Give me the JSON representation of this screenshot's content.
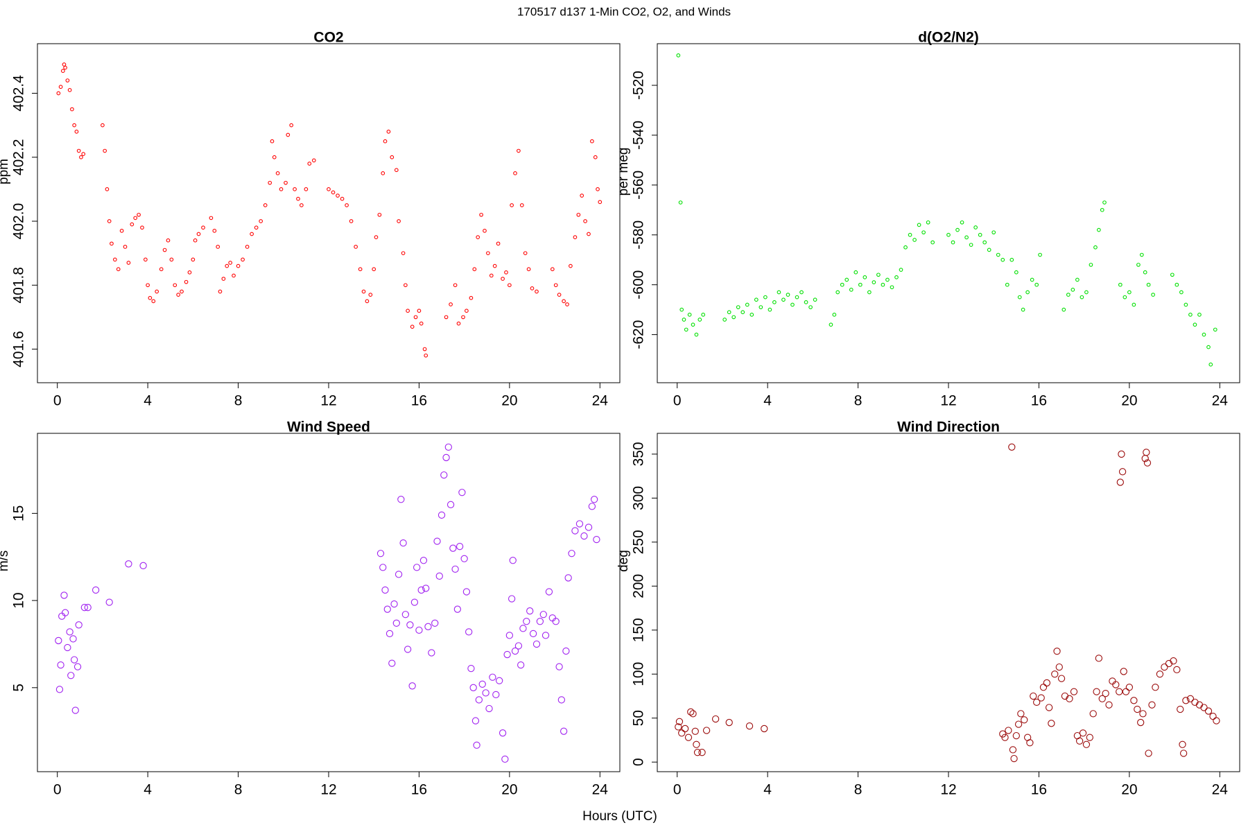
{
  "title": "170517   d137   1-Min CO2, O2, and Winds",
  "xlabel": "Hours (UTC)",
  "chart_data": [
    {
      "type": "scatter",
      "title": "CO2",
      "ylabel": "ppm",
      "color": "#ff0000",
      "xlim": [
        -0.88,
        24.88
      ],
      "xticks": [
        0,
        4,
        8,
        12,
        16,
        20,
        24
      ],
      "ylim": [
        401.495,
        402.555
      ],
      "yticks": [
        401.6,
        401.8,
        {
          "value": 402,
          "label": "402.0"
        },
        402.2,
        402.4
      ],
      "x": [
        0.05,
        0.15,
        0.25,
        0.3,
        0.35,
        0.45,
        0.55,
        0.65,
        0.75,
        0.85,
        0.95,
        1.05,
        1.15,
        2.0,
        2.1,
        2.2,
        2.3,
        2.4,
        2.55,
        2.7,
        2.85,
        3.0,
        3.15,
        3.3,
        3.45,
        3.6,
        3.75,
        3.9,
        4.0,
        4.1,
        4.25,
        4.4,
        4.6,
        4.75,
        4.9,
        5.05,
        5.2,
        5.35,
        5.5,
        5.7,
        5.85,
        6.0,
        6.1,
        6.25,
        6.45,
        6.8,
        6.95,
        7.1,
        7.2,
        7.35,
        7.5,
        7.65,
        7.8,
        8.0,
        8.2,
        8.4,
        8.6,
        8.8,
        9.0,
        9.2,
        9.4,
        9.5,
        9.6,
        9.75,
        9.9,
        10.1,
        10.2,
        10.35,
        10.5,
        10.65,
        10.8,
        11.0,
        11.15,
        11.35,
        12.0,
        12.2,
        12.4,
        12.6,
        12.8,
        13.0,
        13.2,
        13.4,
        13.55,
        13.7,
        13.85,
        14.0,
        14.1,
        14.25,
        14.4,
        14.5,
        14.65,
        14.8,
        15.0,
        15.1,
        15.3,
        15.4,
        15.5,
        15.7,
        15.85,
        16.0,
        16.1,
        16.25,
        16.3,
        17.2,
        17.4,
        17.6,
        17.75,
        17.95,
        18.1,
        18.3,
        18.45,
        18.6,
        18.75,
        18.9,
        19.05,
        19.2,
        19.35,
        19.5,
        19.7,
        19.85,
        20.0,
        20.1,
        20.25,
        20.4,
        20.55,
        20.7,
        20.85,
        21.0,
        21.2,
        21.9,
        22.05,
        22.2,
        22.4,
        22.55,
        22.7,
        22.9,
        23.05,
        23.2,
        23.35,
        23.5,
        23.65,
        23.8,
        23.9,
        24.0
      ],
      "values": [
        402.4,
        402.42,
        402.47,
        402.49,
        402.48,
        402.44,
        402.41,
        402.35,
        402.3,
        402.28,
        402.22,
        402.2,
        402.21,
        402.3,
        402.22,
        402.1,
        402.0,
        401.93,
        401.88,
        401.85,
        401.97,
        401.92,
        401.87,
        401.99,
        402.01,
        402.02,
        401.98,
        401.88,
        401.8,
        401.76,
        401.75,
        401.78,
        401.85,
        401.91,
        401.94,
        401.88,
        401.8,
        401.77,
        401.78,
        401.81,
        401.84,
        401.88,
        401.94,
        401.96,
        401.98,
        402.01,
        401.97,
        401.92,
        401.78,
        401.82,
        401.86,
        401.87,
        401.83,
        401.86,
        401.88,
        401.92,
        401.96,
        401.98,
        402.0,
        402.05,
        402.12,
        402.25,
        402.2,
        402.15,
        402.1,
        402.12,
        402.27,
        402.3,
        402.1,
        402.07,
        402.05,
        402.1,
        402.18,
        402.19,
        402.1,
        402.09,
        402.08,
        402.07,
        402.05,
        402.0,
        401.92,
        401.85,
        401.78,
        401.75,
        401.77,
        401.85,
        401.95,
        402.02,
        402.15,
        402.25,
        402.28,
        402.2,
        402.16,
        402.0,
        401.9,
        401.8,
        401.72,
        401.67,
        401.7,
        401.72,
        401.68,
        401.6,
        401.58,
        401.7,
        401.74,
        401.8,
        401.68,
        401.7,
        401.72,
        401.76,
        401.85,
        401.95,
        402.02,
        401.97,
        401.9,
        401.83,
        401.86,
        401.93,
        401.82,
        401.84,
        401.8,
        402.05,
        402.15,
        402.22,
        402.05,
        401.9,
        401.85,
        401.79,
        401.78,
        401.85,
        401.8,
        401.77,
        401.75,
        401.74,
        401.86,
        401.95,
        402.02,
        402.08,
        402.0,
        401.96,
        402.25,
        402.2,
        402.1,
        402.06
      ]
    },
    {
      "type": "scatter",
      "title": "d(O2/N2)",
      "ylabel": "per meg",
      "color": "#00e000",
      "xlim": [
        -0.88,
        24.88
      ],
      "xticks": [
        0,
        4,
        8,
        12,
        16,
        20,
        24
      ],
      "ylim": [
        -639.3,
        -503.3
      ],
      "yticks": [
        -620,
        -600,
        -580,
        -560,
        -540,
        -520
      ],
      "x": [
        0.05,
        0.15,
        0.2,
        0.3,
        0.4,
        0.55,
        0.7,
        0.85,
        1.0,
        1.15,
        2.1,
        2.3,
        2.5,
        2.7,
        2.9,
        3.1,
        3.3,
        3.5,
        3.7,
        3.9,
        4.1,
        4.3,
        4.5,
        4.7,
        4.9,
        5.1,
        5.3,
        5.5,
        5.7,
        5.9,
        6.1,
        6.8,
        6.95,
        7.1,
        7.3,
        7.5,
        7.7,
        7.9,
        8.1,
        8.3,
        8.5,
        8.7,
        8.9,
        9.1,
        9.3,
        9.5,
        9.7,
        9.9,
        10.1,
        10.3,
        10.5,
        10.7,
        10.9,
        11.1,
        11.3,
        12.0,
        12.2,
        12.4,
        12.6,
        12.8,
        13.0,
        13.2,
        13.4,
        13.6,
        13.8,
        14.0,
        14.2,
        14.4,
        14.6,
        14.8,
        15.0,
        15.15,
        15.3,
        15.5,
        15.7,
        15.9,
        16.05,
        17.1,
        17.3,
        17.5,
        17.7,
        17.9,
        18.1,
        18.3,
        18.5,
        18.65,
        18.8,
        18.9,
        19.6,
        19.8,
        20.0,
        20.2,
        20.4,
        20.55,
        20.7,
        20.85,
        21.05,
        21.9,
        22.1,
        22.3,
        22.5,
        22.7,
        22.9,
        23.1,
        23.3,
        23.5,
        23.6,
        23.8
      ],
      "values": [
        -508,
        -567,
        -610,
        -614,
        -618,
        -612,
        -616,
        -620,
        -614,
        -612,
        -614,
        -611,
        -613,
        -609,
        -611,
        -608,
        -612,
        -606,
        -609,
        -605,
        -610,
        -607,
        -603,
        -606,
        -604,
        -608,
        -605,
        -603,
        -607,
        -609,
        -606,
        -616,
        -612,
        -603,
        -600,
        -598,
        -602,
        -595,
        -600,
        -597,
        -603,
        -599,
        -596,
        -600,
        -598,
        -601,
        -597,
        -594,
        -585,
        -580,
        -582,
        -576,
        -579,
        -575,
        -583,
        -580,
        -583,
        -578,
        -575,
        -581,
        -584,
        -577,
        -580,
        -583,
        -586,
        -579,
        -588,
        -590,
        -600,
        -590,
        -595,
        -605,
        -610,
        -603,
        -598,
        -600,
        -588,
        -610,
        -604,
        -602,
        -598,
        -605,
        -603,
        -592,
        -585,
        -578,
        -570,
        -567,
        -600,
        -605,
        -603,
        -608,
        -592,
        -588,
        -595,
        -600,
        -604,
        -596,
        -600,
        -603,
        -608,
        -612,
        -616,
        -612,
        -620,
        -625,
        -632,
        -618
      ]
    },
    {
      "type": "scatter",
      "title": "Wind Speed",
      "ylabel": "m/s",
      "color": "#a020f0",
      "xlim": [
        -0.88,
        24.88
      ],
      "xticks": [
        0,
        4,
        8,
        12,
        16,
        20,
        24
      ],
      "ylim": [
        0.18,
        19.59
      ],
      "yticks": [
        5,
        10,
        15
      ],
      "x": [
        0.05,
        0.1,
        0.15,
        0.2,
        0.3,
        0.35,
        0.45,
        0.55,
        0.6,
        0.7,
        0.75,
        0.8,
        0.9,
        0.95,
        1.2,
        1.35,
        1.7,
        2.3,
        3.15,
        3.8,
        14.3,
        14.4,
        14.5,
        14.6,
        14.7,
        14.8,
        14.9,
        15.0,
        15.1,
        15.2,
        15.3,
        15.4,
        15.5,
        15.6,
        15.7,
        15.8,
        15.9,
        16.0,
        16.1,
        16.2,
        16.3,
        16.4,
        16.55,
        16.7,
        16.8,
        16.9,
        17.0,
        17.1,
        17.2,
        17.3,
        17.4,
        17.5,
        17.6,
        17.7,
        17.8,
        17.9,
        18.0,
        18.1,
        18.2,
        18.3,
        18.4,
        18.5,
        18.55,
        18.65,
        18.8,
        18.95,
        19.1,
        19.25,
        19.4,
        19.55,
        19.7,
        19.8,
        19.9,
        20.0,
        20.1,
        20.15,
        20.25,
        20.4,
        20.5,
        20.6,
        20.75,
        20.9,
        21.05,
        21.2,
        21.35,
        21.5,
        21.6,
        21.75,
        21.9,
        22.05,
        22.2,
        22.3,
        22.4,
        22.5,
        22.6,
        22.75,
        22.9,
        23.1,
        23.3,
        23.5,
        23.65,
        23.75,
        23.85
      ],
      "values": [
        7.7,
        4.9,
        6.3,
        9.1,
        10.3,
        9.3,
        7.3,
        8.2,
        5.7,
        7.8,
        6.6,
        3.7,
        6.2,
        8.6,
        9.6,
        9.6,
        10.6,
        9.9,
        12.1,
        12.0,
        12.7,
        11.9,
        10.6,
        9.5,
        8.1,
        6.4,
        9.8,
        8.7,
        11.5,
        15.8,
        13.3,
        9.2,
        7.2,
        8.6,
        5.1,
        9.9,
        11.9,
        8.3,
        10.6,
        12.3,
        10.7,
        8.5,
        7.0,
        8.7,
        13.4,
        11.4,
        14.9,
        17.2,
        18.2,
        18.8,
        15.5,
        13.0,
        11.8,
        9.5,
        13.1,
        16.2,
        12.4,
        10.5,
        8.2,
        6.1,
        5.0,
        3.1,
        1.7,
        4.3,
        5.2,
        4.7,
        3.8,
        5.6,
        4.6,
        5.4,
        2.4,
        0.9,
        6.9,
        8.0,
        10.1,
        12.3,
        7.1,
        7.4,
        6.3,
        8.4,
        8.8,
        9.4,
        8.1,
        7.5,
        8.8,
        9.2,
        8.0,
        10.5,
        9.0,
        8.8,
        6.2,
        4.3,
        2.5,
        7.1,
        11.3,
        12.7,
        14.0,
        14.4,
        13.7,
        14.2,
        15.4,
        15.8,
        13.5
      ]
    },
    {
      "type": "scatter",
      "title": "Wind Direction",
      "ylabel": "deg",
      "color": "#9b0a0a",
      "xlim": [
        -0.88,
        24.88
      ],
      "xticks": [
        0,
        4,
        8,
        12,
        16,
        20,
        24
      ],
      "ylim": [
        -10.9,
        373.6
      ],
      "yticks": [
        0,
        50,
        100,
        150,
        200,
        250,
        300,
        350
      ],
      "x": [
        0.05,
        0.1,
        0.2,
        0.35,
        0.5,
        0.6,
        0.7,
        0.8,
        0.85,
        0.9,
        1.1,
        1.3,
        1.7,
        2.3,
        3.2,
        3.85,
        14.4,
        14.5,
        14.65,
        14.8,
        14.85,
        14.9,
        15.0,
        15.1,
        15.2,
        15.35,
        15.5,
        15.6,
        15.75,
        15.9,
        16.1,
        16.2,
        16.35,
        16.45,
        16.55,
        16.7,
        16.8,
        16.9,
        17.0,
        17.15,
        17.35,
        17.55,
        17.7,
        17.8,
        17.95,
        18.1,
        18.25,
        18.4,
        18.55,
        18.65,
        18.8,
        18.95,
        19.1,
        19.25,
        19.4,
        19.55,
        19.6,
        19.65,
        19.7,
        19.75,
        19.85,
        20.0,
        20.2,
        20.35,
        20.5,
        20.6,
        20.7,
        20.75,
        20.8,
        20.85,
        21.0,
        21.15,
        21.35,
        21.55,
        21.75,
        21.95,
        22.1,
        22.25,
        22.35,
        22.4,
        22.5,
        22.7,
        22.9,
        23.1,
        23.3,
        23.5,
        23.7,
        23.85
      ],
      "values": [
        40,
        46,
        33,
        38,
        28,
        57,
        55,
        35,
        20,
        11,
        11,
        36,
        49,
        45,
        41,
        38,
        32,
        28,
        36,
        358,
        14,
        4,
        30,
        43,
        55,
        48,
        28,
        22,
        75,
        68,
        73,
        85,
        90,
        62,
        44,
        100,
        126,
        108,
        95,
        75,
        72,
        80,
        30,
        24,
        33,
        20,
        28,
        55,
        80,
        118,
        72,
        78,
        65,
        92,
        88,
        80,
        318,
        350,
        330,
        103,
        80,
        85,
        70,
        60,
        45,
        55,
        345,
        352,
        340,
        10,
        65,
        85,
        100,
        108,
        112,
        115,
        105,
        60,
        20,
        10,
        70,
        72,
        68,
        65,
        62,
        58,
        52,
        47
      ]
    }
  ]
}
